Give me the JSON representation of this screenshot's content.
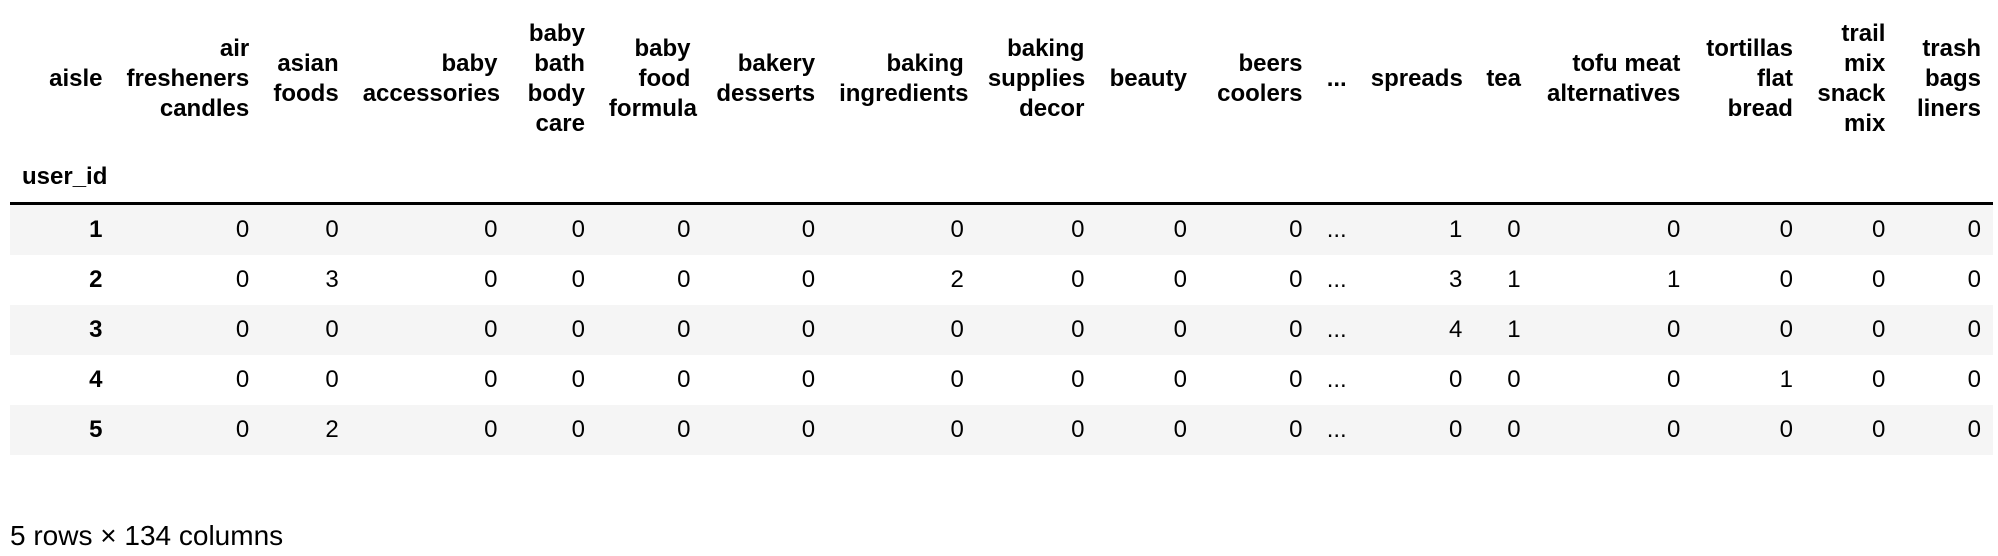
{
  "colors": {
    "row_stripe": "#f5f5f5",
    "header_border": "#000000",
    "text": "#000000",
    "background": "#ffffff"
  },
  "table": {
    "columns_axis_name": "aisle",
    "index_name": "user_id",
    "columns": [
      "air\nfresheners\ncandles",
      "asian\nfoods",
      "baby\naccessories",
      "baby\nbath\nbody\ncare",
      "baby\nfood\nformula",
      "bakery\ndesserts",
      "baking\ningredients",
      "baking\nsupplies\ndecor",
      "beauty",
      "beers\ncoolers",
      "...",
      "spreads",
      "tea",
      "tofu meat\nalternatives",
      "tortillas\nflat\nbread",
      "trail\nmix\nsnack\nmix",
      "trash\nbags\nliners"
    ],
    "rows": [
      {
        "index": "1",
        "values": [
          "0",
          "0",
          "0",
          "0",
          "0",
          "0",
          "0",
          "0",
          "0",
          "0",
          "...",
          "1",
          "0",
          "0",
          "0",
          "0",
          "0"
        ]
      },
      {
        "index": "2",
        "values": [
          "0",
          "3",
          "0",
          "0",
          "0",
          "0",
          "2",
          "0",
          "0",
          "0",
          "...",
          "3",
          "1",
          "1",
          "0",
          "0",
          "0"
        ]
      },
      {
        "index": "3",
        "values": [
          "0",
          "0",
          "0",
          "0",
          "0",
          "0",
          "0",
          "0",
          "0",
          "0",
          "...",
          "4",
          "1",
          "0",
          "0",
          "0",
          "0"
        ]
      },
      {
        "index": "4",
        "values": [
          "0",
          "0",
          "0",
          "0",
          "0",
          "0",
          "0",
          "0",
          "0",
          "0",
          "...",
          "0",
          "0",
          "0",
          "1",
          "0",
          "0"
        ]
      },
      {
        "index": "5",
        "values": [
          "0",
          "2",
          "0",
          "0",
          "0",
          "0",
          "0",
          "0",
          "0",
          "0",
          "...",
          "0",
          "0",
          "0",
          "0",
          "0",
          "0"
        ]
      }
    ],
    "shape_summary": "5 rows × 134 columns"
  }
}
